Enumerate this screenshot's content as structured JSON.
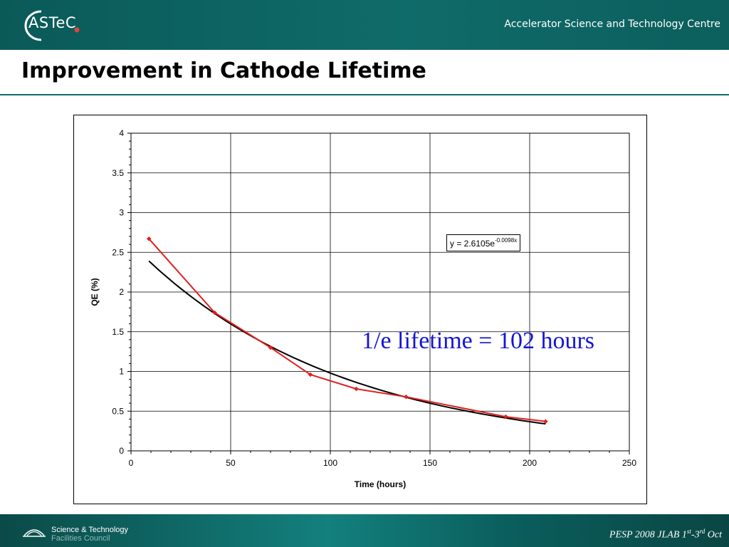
{
  "header": {
    "logo_text": "ASTeC",
    "organization": "Accelerator Science and Technology Centre",
    "logo_dot_color": "#e0443a"
  },
  "slide": {
    "title": "Improvement in Cathode Lifetime"
  },
  "annotations": {
    "equation_main": "y = 2.6105e",
    "equation_exponent": "-0.0098x",
    "lifetime_note": "1/e lifetime = 102 hours"
  },
  "footer": {
    "org_line1": "Science & Technology",
    "org_line2": "Facilities Council",
    "conference_prefix": "PESP 2008 JLAB 1",
    "conference_sup1": "st",
    "conference_mid": "-3",
    "conference_sup2": "rd",
    "conference_suffix": " Oct"
  },
  "chart_data": {
    "type": "scatter",
    "title": "",
    "xlabel": "Time (hours)",
    "ylabel": "QE (%)",
    "xlim": [
      0,
      250
    ],
    "ylim": [
      0,
      4
    ],
    "x_ticks": [
      0,
      50,
      100,
      150,
      200,
      250
    ],
    "y_ticks": [
      0,
      0.5,
      1,
      1.5,
      2,
      2.5,
      3,
      3.5,
      4
    ],
    "x_tick_labels": [
      "0",
      "50",
      "100",
      "150",
      "200",
      "250"
    ],
    "y_tick_labels": [
      "0",
      "0.5",
      "1",
      "1.5",
      "2",
      "2.5",
      "3",
      "3.5",
      "4"
    ],
    "grid": true,
    "series": [
      {
        "color": "#e02020",
        "style": "line-with-markers",
        "x": [
          9,
          42,
          70,
          90,
          113,
          138,
          188,
          208
        ],
        "y": [
          2.67,
          1.74,
          1.3,
          0.96,
          0.78,
          0.68,
          0.43,
          0.37
        ]
      }
    ],
    "trendline": {
      "type": "exponential",
      "a": 2.6105,
      "b": -0.0098,
      "x_range": [
        9,
        208
      ],
      "color": "#000000"
    }
  }
}
